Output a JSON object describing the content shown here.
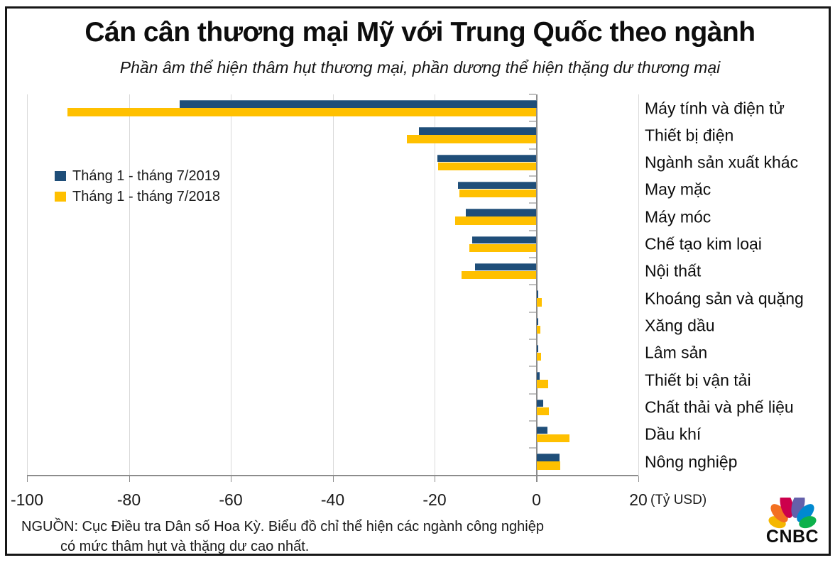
{
  "header": {
    "title": "Cán cân thương mại Mỹ với Trung Quốc theo ngành",
    "subtitle": "Phần âm thể hiện thâm hụt thương mại, phần dương thể hiện thặng dư thương mại"
  },
  "chart_data": {
    "type": "bar",
    "orientation": "horizontal",
    "title": "Cán cân thương mại Mỹ với Trung Quốc theo ngành",
    "subtitle": "Phần âm thể hiện thâm hụt thương mại, phần dương thể hiện thặng dư thương mại",
    "unit_label": "(Tỷ USD)",
    "xlim": [
      -100,
      20
    ],
    "xticks": [
      -100,
      -80,
      -60,
      -40,
      -20,
      0,
      20
    ],
    "grid": "vertical",
    "legend_position": "inside-upper-left",
    "categories": [
      "Máy tính và điện tử",
      "Thiết bị điện",
      "Ngành sản xuất khác",
      "May mặc",
      "Máy móc",
      "Chế tạo kim loại",
      "Nội thất",
      "Khoáng sản và quặng",
      "Xăng dầu",
      "Lâm sản",
      "Thiết bị vận tải",
      "Chất thải và phế liệu",
      "Dầu khí",
      "Nông nghiệp"
    ],
    "series": [
      {
        "name": "Tháng 1 - tháng 7/2019",
        "color": "#1F4E79",
        "values": [
          -70,
          -23,
          -19.5,
          -15.4,
          -13.9,
          -12.6,
          -12,
          0.3,
          0.4,
          0.4,
          0.6,
          1.3,
          2.1,
          4.5
        ]
      },
      {
        "name": "Tháng 1 - tháng 7/2018",
        "color": "#FFC000",
        "values": [
          -92,
          -25.4,
          -19.3,
          -15.1,
          -16,
          -13.2,
          -14.7,
          1.1,
          0.7,
          0.9,
          2.3,
          2.5,
          6.5,
          4.7
        ]
      }
    ]
  },
  "footer": {
    "source_line1": "NGUỒN: Cục Điều tra Dân số Hoa Kỳ. Biểu đồ chỉ thể hiện các ngành công nghiệp",
    "source_line2": "có mức thâm hụt và thặng dư cao nhất.",
    "brand": "CNBC"
  },
  "colors": {
    "bar_2019": "#1F4E79",
    "bar_2018": "#FFC000",
    "gridline": "#D9D9D9",
    "axis": "#8C8C8C",
    "peacock": [
      "#F5B700",
      "#F37021",
      "#CC004C",
      "#6460AA",
      "#0089D0",
      "#0DB14B"
    ]
  }
}
